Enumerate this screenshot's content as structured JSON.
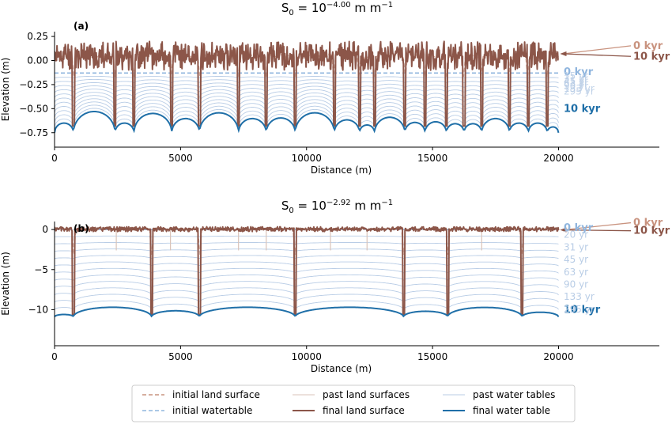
{
  "colors": {
    "land_final": "#8c5649",
    "land_initial": "#c9937f",
    "land_past": "#d9c3b9",
    "water_final": "#1f6fa8",
    "water_initial": "#8fb5de",
    "water_past": "#b9cde6",
    "axis": "#000000"
  },
  "legend": {
    "items": [
      {
        "label": "initial land surface",
        "style": "land-initial"
      },
      {
        "label": "initial watertable",
        "style": "water-initial"
      },
      {
        "label": "past land surfaces",
        "style": "land-past"
      },
      {
        "label": "final land surface",
        "style": "land-final"
      },
      {
        "label": "past water tables",
        "style": "water-past"
      },
      {
        "label": "final water table",
        "style": "water-final"
      }
    ]
  },
  "chart_data": [
    {
      "type": "line",
      "panel_label": "(a)",
      "title_base": "S",
      "title_sub": "0",
      "title_mid": " = 10",
      "title_exp": "−4.00",
      "title_unit": " m m",
      "title_unit_exp": "−1",
      "xlabel": "Distance (m)",
      "ylabel": "Elevation (m)",
      "xlim": [
        0,
        24000
      ],
      "ylim": [
        -0.9,
        0.3
      ],
      "xticks": [
        0,
        5000,
        10000,
        15000,
        20000
      ],
      "yticks": [
        0.25,
        0.0,
        -0.25,
        -0.5,
        -0.75
      ],
      "ytick_labels": [
        "0.25",
        "0.00",
        "−0.25",
        "−0.50",
        "−0.75"
      ],
      "land": {
        "x_end": 20000,
        "baseline": 0.05,
        "noise": 0.15,
        "seed": 11
      },
      "channels": [
        750,
        2400,
        3150,
        4650,
        5750,
        7300,
        8400,
        9550,
        11100,
        12100,
        12700,
        13900,
        14700,
        15550,
        16250,
        16950,
        18050,
        18800,
        19550
      ],
      "channel_bottom": -0.68,
      "water_final": {
        "offset": -0.75,
        "bump_scale": 0.4,
        "end_value": -0.43
      },
      "water_initial": {
        "level": -0.13
      },
      "past_water_count": 11,
      "surface_labels": [
        {
          "text": "0 kyr",
          "value": 0.12,
          "target": 0.07,
          "kind": "land-initial"
        },
        {
          "text": "10 kyr",
          "value": 0.01,
          "target": 0.07,
          "kind": "land-final"
        }
      ],
      "water_labels": [
        {
          "text": "0 kyr",
          "value": -0.12,
          "kind": "water-initial"
        },
        {
          "text": "10 kyr",
          "value": -0.5,
          "kind": "water-final"
        }
      ],
      "water_labels_faded": [
        "15 yr",
        "31 yr",
        "45 yr",
        "63 yr",
        "90 yr",
        "133 yr",
        "295 yr"
      ]
    },
    {
      "type": "line",
      "panel_label": "(b)",
      "title_base": "S",
      "title_sub": "0",
      "title_mid": " = 10",
      "title_exp": "−2.92",
      "title_unit": " m m",
      "title_unit_exp": "−1",
      "xlabel": "Distance (m)",
      "ylabel": "Elevation (m)",
      "xlim": [
        0,
        24000
      ],
      "ylim": [
        -14.5,
        1.0
      ],
      "xticks": [
        0,
        5000,
        10000,
        15000,
        20000
      ],
      "yticks": [
        0,
        -5,
        -10
      ],
      "ytick_labels": [
        "0",
        "−5",
        "−10"
      ],
      "land": {
        "x_end": 20000,
        "baseline": 0.05,
        "noise": 0.3,
        "seed": 5
      },
      "channels": [
        750,
        3850,
        5750,
        9550,
        13850,
        15600,
        18550
      ],
      "minor_channels": [
        2450,
        4600,
        7300,
        8400,
        10950,
        12400,
        16950
      ],
      "channel_bottom": -10.6,
      "water_final": {
        "offset": -10.9,
        "bump_scale": 1.2,
        "end_value": -9.8
      },
      "water_initial": {
        "level": 0.0
      },
      "past_water_count": 11,
      "surface_labels": [
        {
          "text": "0 kyr",
          "value": 0.45,
          "target": -0.05,
          "kind": "land-initial"
        },
        {
          "text": "10 kyr",
          "value": -0.55,
          "target": -0.05,
          "kind": "land-final"
        }
      ],
      "water_labels": [
        {
          "text": "0 kyr",
          "value": 0.2,
          "kind": "water-initial"
        },
        {
          "text": "10 kyr",
          "value": -10.0,
          "kind": "water-final"
        }
      ],
      "water_labels_past": [
        {
          "text": "20 yr",
          "value": -0.65
        },
        {
          "text": "31 yr",
          "value": -2.2
        },
        {
          "text": "45 yr",
          "value": -3.75
        },
        {
          "text": "63 yr",
          "value": -5.3
        },
        {
          "text": "90 yr",
          "value": -6.85
        },
        {
          "text": "133 yr",
          "value": -8.4
        },
        {
          "text": "295 yr",
          "value": -9.95
        }
      ]
    }
  ]
}
